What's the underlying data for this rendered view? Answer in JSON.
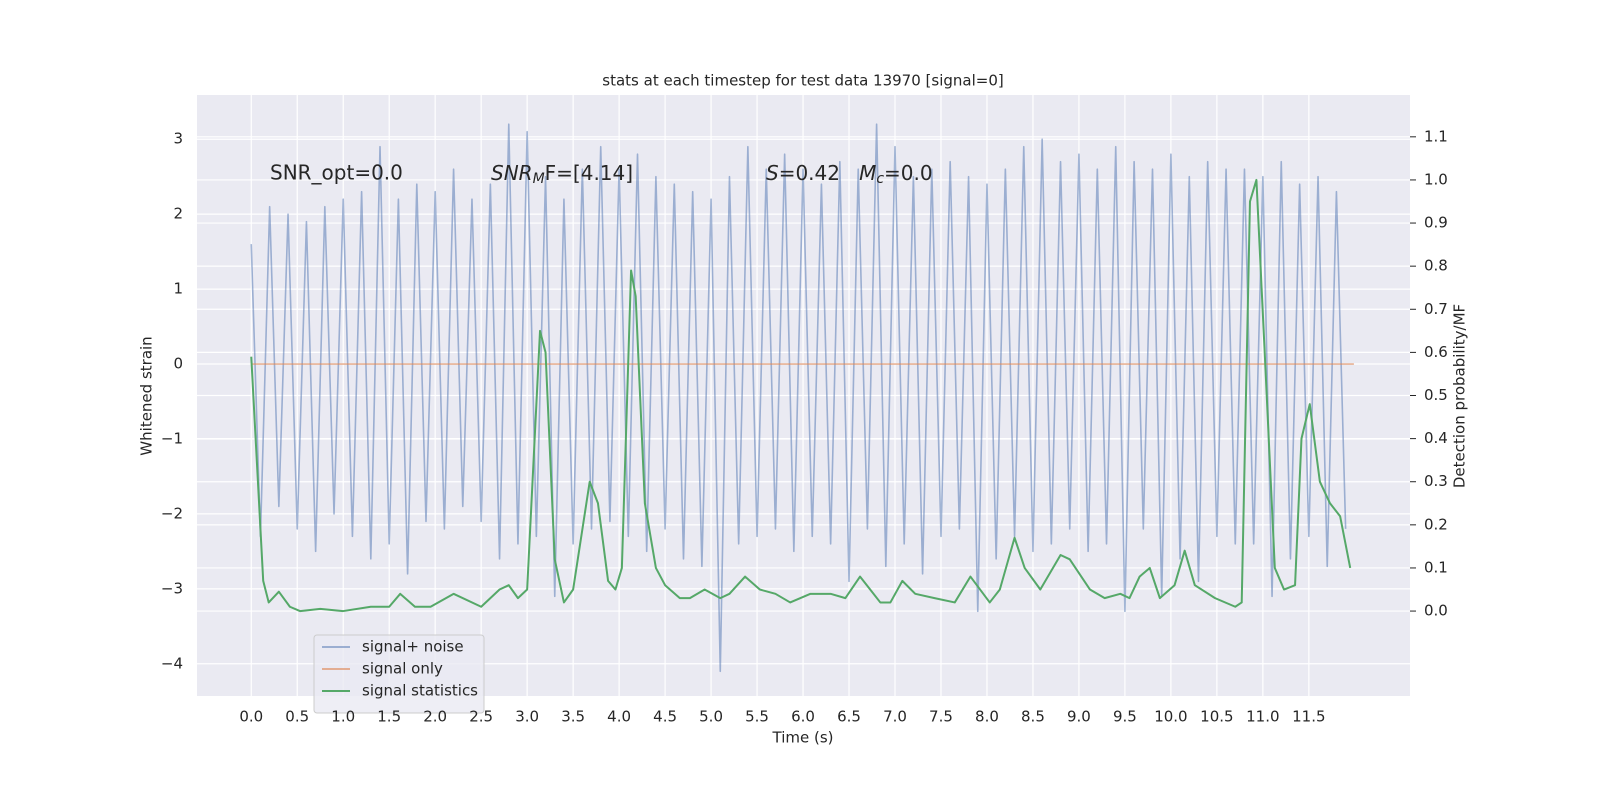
{
  "chart_data": {
    "type": "line",
    "title": "stats at each timestep for test data 13970 [signal=0]",
    "xlabel": "Time (s)",
    "ylabel": "Whitened strain",
    "y2label": "Detection probability/MF",
    "annotations": [
      "SNR_opt=0.0",
      [
        "SNR",
        "M",
        "F=[4.14]"
      ],
      [
        "S",
        "=0.42   ",
        "M",
        "c",
        "=0.0"
      ]
    ],
    "xlim": [
      -0.59,
      12.6
    ],
    "xticks": [
      {
        "value": 0,
        "label": "0.0"
      },
      0.5,
      {
        "value": 1,
        "label": "1.0"
      },
      1.5,
      {
        "value": 2,
        "label": "2.0"
      },
      2.5,
      {
        "value": 3,
        "label": "3.0"
      },
      3.5,
      {
        "value": 4,
        "label": "4.0"
      },
      4.5,
      {
        "value": 5,
        "label": "5.0"
      },
      5.5,
      {
        "value": 6,
        "label": "6.0"
      },
      6.5,
      {
        "value": 7,
        "label": "7.0"
      },
      7.5,
      {
        "value": 8,
        "label": "8.0"
      },
      8.5,
      {
        "value": 9,
        "label": "9.0"
      },
      9.5,
      {
        "value": 10,
        "label": "10.0"
      },
      10.5,
      {
        "value": 11,
        "label": "11.0"
      },
      11.5
    ],
    "ylim": [
      -4.43,
      3.59
    ],
    "yticks": [
      {
        "value": -4,
        "label": "−4"
      },
      {
        "value": -3,
        "label": "−3"
      },
      {
        "value": -2,
        "label": "−2"
      },
      {
        "value": -1,
        "label": "−1"
      },
      0,
      1,
      2,
      3
    ],
    "y2lim": [
      -0.197,
      1.197
    ],
    "y2ticks": [
      {
        "value": 0,
        "label": "0.0"
      },
      0.1,
      0.2,
      0.3,
      0.4,
      0.5,
      0.6,
      0.7,
      0.8,
      0.9,
      {
        "value": 1,
        "label": "1.0"
      },
      1.1
    ],
    "grid": true,
    "legend": "lower left",
    "series": [
      {
        "name": "signal+ noise",
        "color": "#4c72b0",
        "opacity": 0.5,
        "x": [
          0.0,
          0.1,
          0.2,
          0.3,
          0.4,
          0.5,
          0.6,
          0.7,
          0.8,
          0.9,
          1.0,
          1.1,
          1.2,
          1.3,
          1.4,
          1.5,
          1.6,
          1.7,
          1.8,
          1.9,
          2.0,
          2.1,
          2.2,
          2.3,
          2.4,
          2.5,
          2.6,
          2.7,
          2.8,
          2.9,
          3.0,
          3.1,
          3.2,
          3.3,
          3.4,
          3.5,
          3.6,
          3.7,
          3.8,
          3.9,
          4.0,
          4.1,
          4.2,
          4.3,
          4.4,
          4.5,
          4.6,
          4.7,
          4.8,
          4.9,
          5.0,
          5.1,
          5.2,
          5.3,
          5.4,
          5.5,
          5.6,
          5.7,
          5.8,
          5.9,
          6.0,
          6.1,
          6.2,
          6.3,
          6.4,
          6.5,
          6.6,
          6.7,
          6.8,
          6.9,
          7.0,
          7.1,
          7.2,
          7.3,
          7.4,
          7.5,
          7.6,
          7.7,
          7.8,
          7.9,
          8.0,
          8.1,
          8.2,
          8.3,
          8.4,
          8.5,
          8.6,
          8.7,
          8.8,
          8.9,
          9.0,
          9.1,
          9.2,
          9.3,
          9.4,
          9.5,
          9.6,
          9.7,
          9.8,
          9.9,
          10.0,
          10.1,
          10.2,
          10.3,
          10.4,
          10.5,
          10.6,
          10.7,
          10.8,
          10.9,
          11.0,
          11.1,
          11.2,
          11.3,
          11.4,
          11.5,
          11.6,
          11.7,
          11.8,
          11.9
        ],
        "values": [
          1.6,
          -2.3,
          2.1,
          -1.9,
          2.0,
          -2.2,
          1.9,
          -2.5,
          2.1,
          -2.0,
          2.2,
          -2.3,
          2.3,
          -2.6,
          2.9,
          -2.4,
          2.2,
          -2.8,
          2.4,
          -2.1,
          2.3,
          -2.2,
          2.6,
          -1.9,
          2.2,
          -2.1,
          2.4,
          -2.6,
          3.2,
          -2.4,
          3.1,
          -2.3,
          2.5,
          -3.1,
          2.2,
          -2.4,
          2.6,
          -2.2,
          2.9,
          -2.1,
          2.6,
          -2.3,
          2.8,
          -2.5,
          2.5,
          -2.2,
          2.4,
          -2.6,
          2.3,
          -2.7,
          2.2,
          -4.1,
          2.5,
          -2.4,
          2.9,
          -2.3,
          2.6,
          -2.2,
          2.8,
          -2.5,
          2.6,
          -2.3,
          2.4,
          -2.4,
          2.7,
          -2.9,
          2.6,
          -2.2,
          3.2,
          -2.7,
          2.9,
          -2.4,
          2.5,
          -2.8,
          2.6,
          -2.3,
          2.7,
          -2.2,
          2.5,
          -3.3,
          2.4,
          -2.6,
          2.6,
          -2.3,
          2.9,
          -2.5,
          3.0,
          -2.4,
          2.7,
          -2.2,
          2.8,
          -2.5,
          2.6,
          -2.4,
          2.9,
          -3.3,
          2.7,
          -2.2,
          2.6,
          -3.1,
          2.8,
          -2.6,
          2.5,
          -2.9,
          2.7,
          -2.3,
          2.6,
          -2.4,
          2.6,
          -2.4,
          2.5,
          -3.1,
          2.7,
          -2.6,
          2.4,
          -2.3,
          2.5,
          -2.7,
          2.3,
          -2.2
        ]
      },
      {
        "name": "signal only",
        "color": "#dd8452",
        "opacity": 0.6,
        "x": [
          0.0,
          11.99
        ],
        "values": [
          0,
          0
        ]
      },
      {
        "name": "signal statistics",
        "color": "#55a868",
        "opacity": 1,
        "axis": "y2",
        "x": [
          0.0,
          0.13,
          0.19,
          0.3,
          0.42,
          0.53,
          0.75,
          1.0,
          1.3,
          1.5,
          1.62,
          1.78,
          1.95,
          2.2,
          2.5,
          2.7,
          2.8,
          2.9,
          3.0,
          3.14,
          3.2,
          3.3,
          3.4,
          3.5,
          3.68,
          3.77,
          3.88,
          3.96,
          4.03,
          4.13,
          4.18,
          4.28,
          4.4,
          4.5,
          4.66,
          4.77,
          4.93,
          5.1,
          5.2,
          5.37,
          5.53,
          5.7,
          5.86,
          6.08,
          6.3,
          6.46,
          6.62,
          6.73,
          6.84,
          6.95,
          7.08,
          7.22,
          7.43,
          7.65,
          7.82,
          8.03,
          8.14,
          8.3,
          8.41,
          8.58,
          8.8,
          8.9,
          9.12,
          9.28,
          9.45,
          9.55,
          9.66,
          9.77,
          9.88,
          10.04,
          10.15,
          10.26,
          10.48,
          10.7,
          10.77,
          10.86,
          10.93,
          11.02,
          11.13,
          11.23,
          11.35,
          11.42,
          11.51,
          11.62,
          11.73,
          11.84,
          11.95
        ],
        "values": [
          0.59,
          0.07,
          0.02,
          0.045,
          0.01,
          0.0,
          0.005,
          0.0,
          0.01,
          0.01,
          0.04,
          0.01,
          0.01,
          0.04,
          0.01,
          0.05,
          0.06,
          0.03,
          0.05,
          0.65,
          0.6,
          0.12,
          0.02,
          0.05,
          0.3,
          0.25,
          0.07,
          0.05,
          0.1,
          0.79,
          0.73,
          0.25,
          0.1,
          0.06,
          0.03,
          0.03,
          0.05,
          0.03,
          0.04,
          0.08,
          0.05,
          0.04,
          0.02,
          0.04,
          0.04,
          0.03,
          0.08,
          0.05,
          0.02,
          0.02,
          0.07,
          0.04,
          0.03,
          0.02,
          0.08,
          0.02,
          0.05,
          0.17,
          0.1,
          0.05,
          0.13,
          0.12,
          0.05,
          0.03,
          0.04,
          0.03,
          0.08,
          0.1,
          0.03,
          0.06,
          0.14,
          0.06,
          0.03,
          0.01,
          0.02,
          0.95,
          1.0,
          0.6,
          0.1,
          0.05,
          0.06,
          0.4,
          0.48,
          0.3,
          0.25,
          0.22,
          0.1
        ]
      }
    ]
  }
}
